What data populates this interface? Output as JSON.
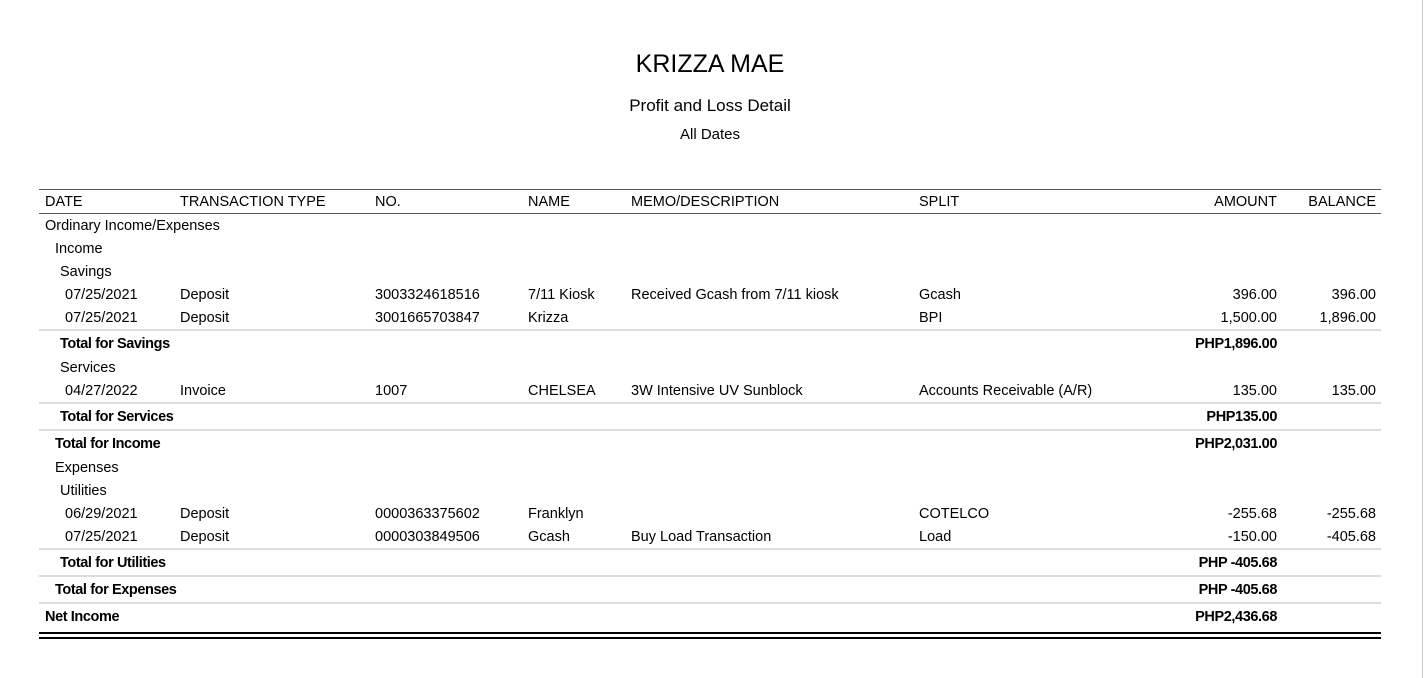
{
  "company": "KRIZZA MAE",
  "report_title": "Profit and Loss Detail",
  "date_range": "All Dates",
  "columns": {
    "date": "DATE",
    "type": "TRANSACTION TYPE",
    "no": "NO.",
    "name": "NAME",
    "memo": "MEMO/DESCRIPTION",
    "split": "SPLIT",
    "amount": "AMOUNT",
    "balance": "BALANCE"
  },
  "rows": [
    {
      "kind": "section",
      "level": 0,
      "label": "Ordinary Income/Expenses"
    },
    {
      "kind": "section",
      "level": 1,
      "label": "Income"
    },
    {
      "kind": "section",
      "level": 2,
      "label": "Savings"
    },
    {
      "kind": "txn",
      "date": "07/25/2021",
      "type": "Deposit",
      "no": "3003324618516",
      "name": "7/11 Kiosk",
      "memo": "Received Gcash from 7/11 kiosk",
      "split": "Gcash",
      "amount": "396.00",
      "balance": "396.00"
    },
    {
      "kind": "txn",
      "date": "07/25/2021",
      "type": "Deposit",
      "no": "3001665703847",
      "name": "Krizza",
      "memo": "",
      "split": "BPI",
      "amount": "1,500.00",
      "balance": "1,896.00"
    },
    {
      "kind": "total",
      "level": 2,
      "label": "Total for Savings",
      "amount": "PHP1,896.00"
    },
    {
      "kind": "section",
      "level": 2,
      "label": "Services"
    },
    {
      "kind": "txn",
      "date": "04/27/2022",
      "type": "Invoice",
      "no": "1007",
      "name": "CHELSEA",
      "memo": "3W Intensive UV Sunblock",
      "split": "Accounts Receivable (A/R)",
      "amount": "135.00",
      "balance": "135.00"
    },
    {
      "kind": "total",
      "level": 2,
      "label": "Total for Services",
      "amount": "PHP135.00"
    },
    {
      "kind": "total",
      "level": 1,
      "label": "Total for Income",
      "amount": "PHP2,031.00"
    },
    {
      "kind": "section",
      "level": 1,
      "label": "Expenses"
    },
    {
      "kind": "section",
      "level": 2,
      "label": "Utilities"
    },
    {
      "kind": "txn",
      "date": "06/29/2021",
      "type": "Deposit",
      "no": "0000363375602",
      "name": "Franklyn",
      "memo": "",
      "split": "COTELCO",
      "amount": "-255.68",
      "balance": "-255.68"
    },
    {
      "kind": "txn",
      "date": "07/25/2021",
      "type": "Deposit",
      "no": "0000303849506",
      "name": "Gcash",
      "memo": "Buy Load Transaction",
      "split": "Load",
      "amount": "-150.00",
      "balance": "-405.68"
    },
    {
      "kind": "total",
      "level": 2,
      "label": "Total for Utilities",
      "amount": "PHP -405.68"
    },
    {
      "kind": "total",
      "level": 1,
      "label": "Total for Expenses",
      "amount": "PHP -405.68"
    },
    {
      "kind": "total",
      "level": 0,
      "label": "Net Income",
      "amount": "PHP2,436.68"
    }
  ]
}
